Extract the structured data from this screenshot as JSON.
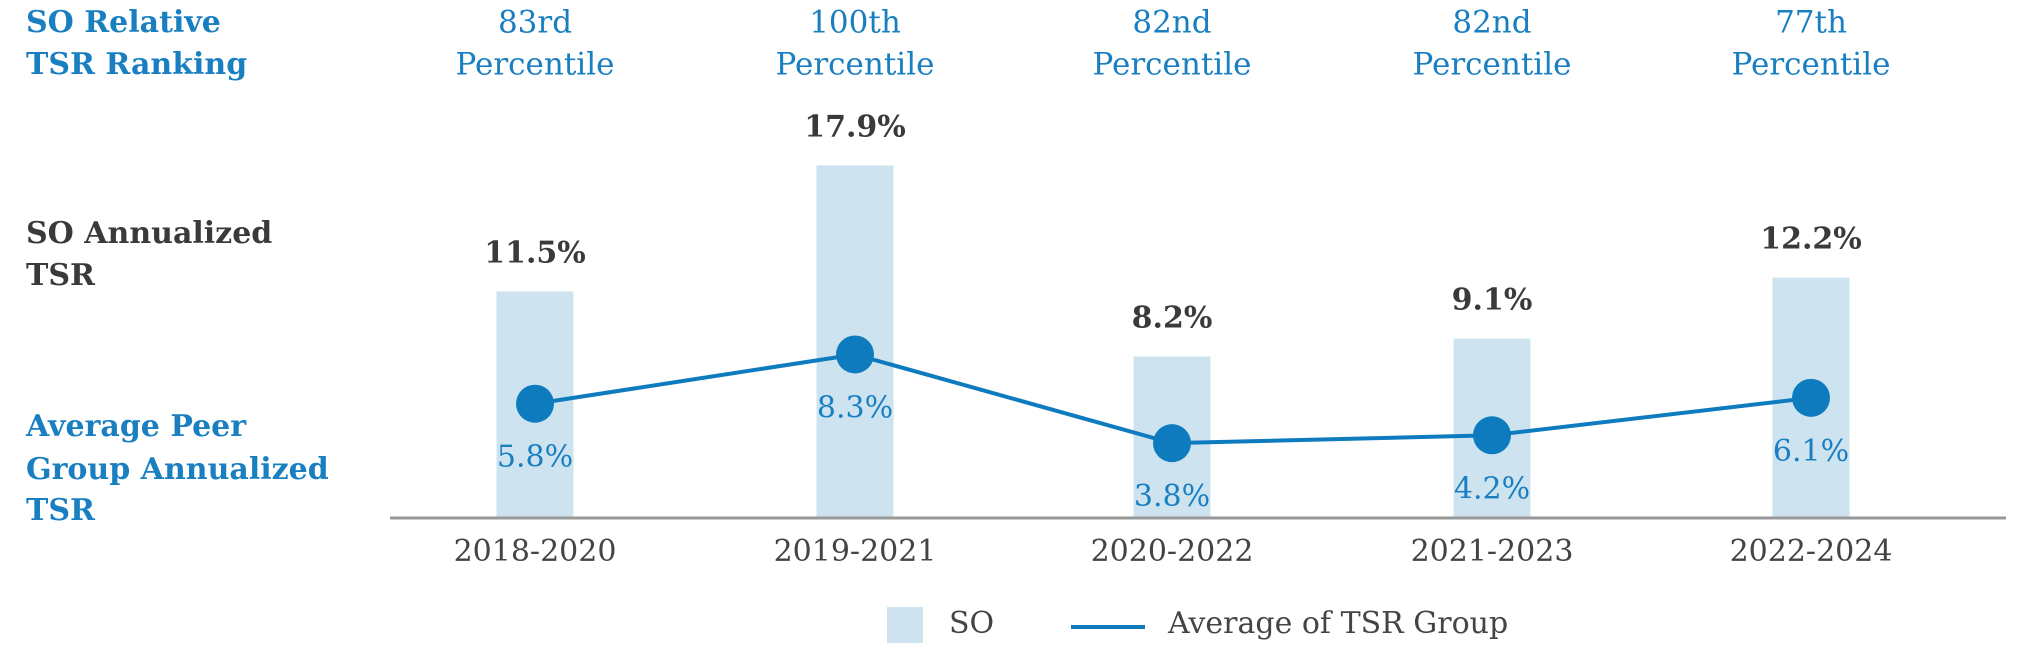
{
  "chart_data": {
    "type": "bar",
    "row_labels": [
      [
        "SO Relative",
        "TSR Ranking"
      ],
      [
        "SO Annualized",
        "TSR"
      ],
      [
        "Average Peer",
        "Group Annualized",
        "TSR"
      ]
    ],
    "rankings": [
      [
        "83rd",
        "Percentile"
      ],
      [
        "100th",
        "Percentile"
      ],
      [
        "82nd",
        "Percentile"
      ],
      [
        "82nd",
        "Percentile"
      ],
      [
        "77th",
        "Percentile"
      ]
    ],
    "categories": [
      "2018-2020",
      "2019-2021",
      "2020-2022",
      "2021-2023",
      "2022-2024"
    ],
    "series": [
      {
        "name": "SO",
        "type": "bar",
        "color": "#cde4f0",
        "values": [
          11.5,
          17.9,
          8.2,
          9.1,
          12.2
        ],
        "value_labels": [
          "11.5%",
          "17.9%",
          "8.2%",
          "9.1%",
          "12.2%"
        ]
      },
      {
        "name": "Average of TSR Group",
        "type": "line",
        "color": "#0e7bbf",
        "values": [
          5.8,
          8.3,
          3.8,
          4.2,
          6.1
        ],
        "value_labels": [
          "5.8%",
          "8.3%",
          "3.8%",
          "4.2%",
          "6.1%"
        ]
      }
    ]
  }
}
